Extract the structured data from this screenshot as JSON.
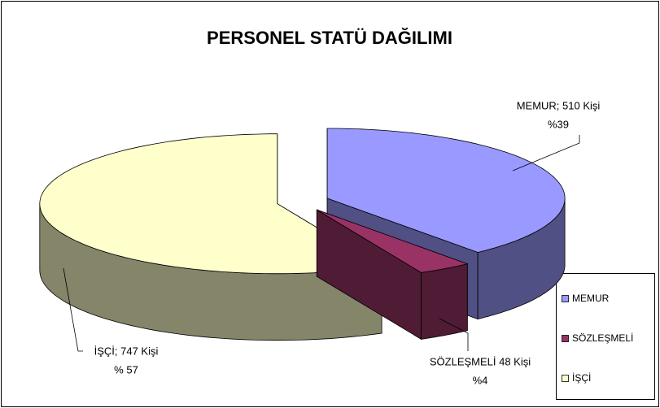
{
  "chart_data": {
    "type": "pie3d",
    "title": "PERSONEL STATÜ DAĞILIMI",
    "categories": [
      "MEMUR",
      "SÖZLEŞMELİ",
      "İŞÇİ"
    ],
    "values": [
      510,
      48,
      747
    ],
    "value_labels": [
      "MEMUR; 510 Kişi",
      "SÖZLEŞMELİ 48 Kişi",
      "İŞÇİ; 747 Kişi"
    ],
    "percent_labels": [
      "%39",
      "%4",
      "% 57"
    ],
    "colors": [
      "#9999ff",
      "#993366",
      "#ffffcc"
    ],
    "legend": "right"
  }
}
